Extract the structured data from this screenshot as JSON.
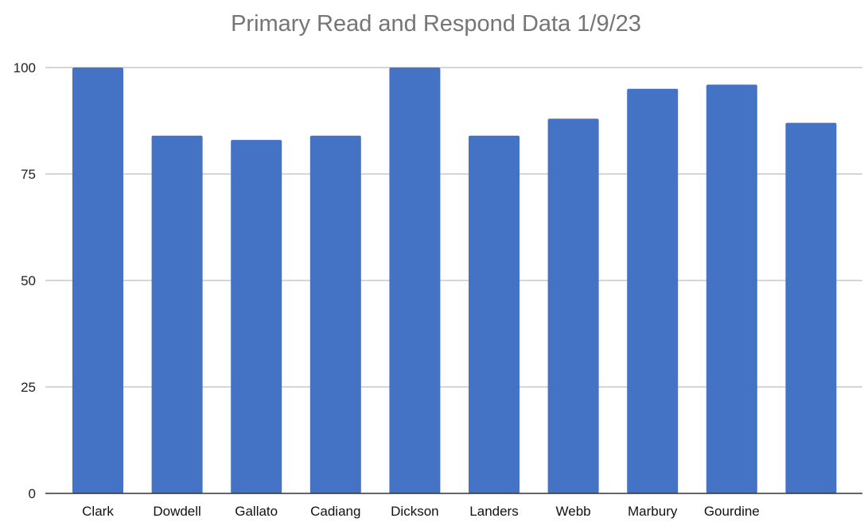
{
  "chart_data": {
    "type": "bar",
    "title": "Primary Read and Respond Data 1/9/23",
    "xlabel": "",
    "ylabel": "",
    "categories": [
      "Clark",
      "Dowdell",
      "Gallato",
      "Cadiang",
      "Dickson",
      "Landers",
      "Webb",
      "Marbury",
      "Gourdine",
      ""
    ],
    "values": [
      100,
      84,
      83,
      84,
      100,
      84,
      88,
      95,
      96,
      87
    ],
    "ylim": [
      0,
      100
    ],
    "yticks": [
      0,
      25,
      50,
      75,
      100
    ],
    "grid": true,
    "legend": "none",
    "bar_color": "#4472c4"
  }
}
